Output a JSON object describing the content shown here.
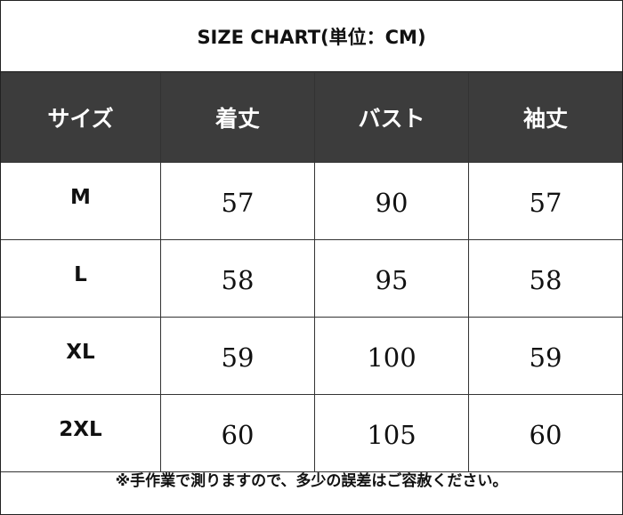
{
  "title": "SIZE CHART(単位：CM)",
  "headers": [
    "サイズ",
    "着丈",
    "バスト",
    "袖丈"
  ],
  "rows": [
    {
      "size": "M",
      "length": "57",
      "bust": "90",
      "sleeve": "57"
    },
    {
      "size": "L",
      "length": "58",
      "bust": "95",
      "sleeve": "58"
    },
    {
      "size": "XL",
      "length": "59",
      "bust": "100",
      "sleeve": "59"
    },
    {
      "size": "2XL",
      "length": "60",
      "bust": "105",
      "sleeve": "60"
    }
  ],
  "note": "※手作業で測りますので、多少の誤差はご容赦ください。",
  "colors": {
    "header_bg": "#3c3c3c",
    "header_text": "#ffffff",
    "border": "#333333"
  }
}
